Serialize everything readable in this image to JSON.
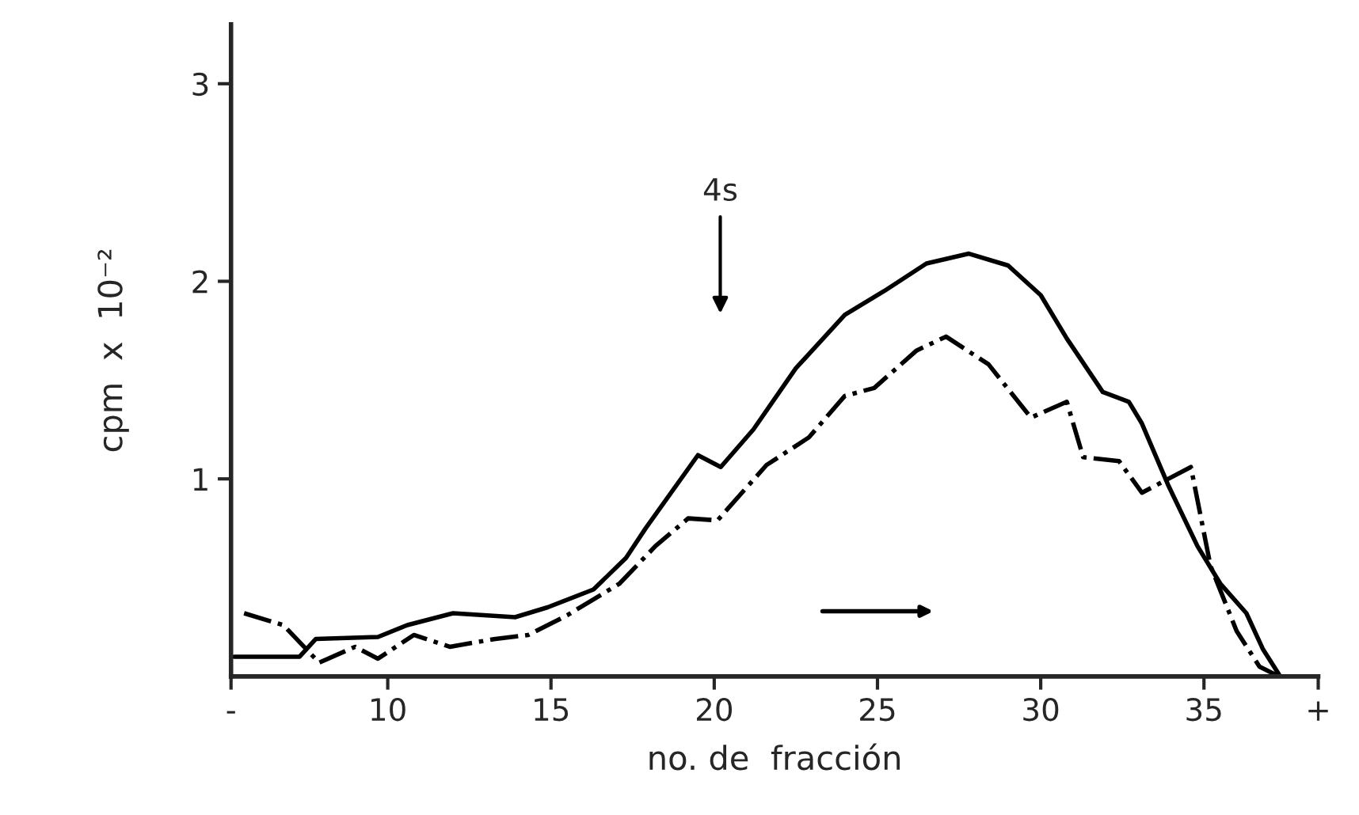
{
  "chart_data": {
    "type": "line",
    "xlabel": "no. de  fracción",
    "ylabel": "cpm  x  10⁻²",
    "xlim": [
      5.2,
      38.5
    ],
    "ylim": [
      0,
      3.3
    ],
    "xticks": [
      {
        "value": 5.2,
        "label": "-"
      },
      10,
      15,
      20,
      25,
      30,
      35,
      {
        "value": 38.5,
        "label": "+"
      }
    ],
    "yticks": [
      1,
      2,
      3
    ],
    "grid": false,
    "legend": false,
    "marker": "none",
    "annotations": [
      "4s"
    ],
    "series": [
      {
        "color": "#000000",
        "line_style": "solid",
        "x": [
          5.3,
          7.3,
          7.8,
          9.7,
          10.6,
          12.0,
          13.9,
          14.9,
          16.3,
          17.3,
          17.9,
          19.5,
          20.2,
          21.2,
          22.5,
          24.0,
          25.2,
          26.5,
          27.8,
          29.0,
          30.0,
          30.8,
          31.9,
          32.7,
          33.1,
          33.9,
          34.8,
          35.5,
          36.3,
          36.8,
          37.3
        ],
        "values": [
          0.1,
          0.1,
          0.19,
          0.2,
          0.26,
          0.32,
          0.3,
          0.35,
          0.44,
          0.6,
          0.75,
          1.12,
          1.06,
          1.25,
          1.56,
          1.83,
          1.95,
          2.09,
          2.14,
          2.08,
          1.93,
          1.71,
          1.44,
          1.39,
          1.28,
          0.97,
          0.66,
          0.47,
          0.32,
          0.14,
          0.01
        ]
      },
      {
        "color": "#000000",
        "line_style": "dashed",
        "x": [
          5.6,
          6.8,
          7.9,
          9.0,
          9.7,
          10.8,
          11.9,
          13.3,
          14.3,
          15.5,
          17.1,
          18.2,
          19.2,
          20.1,
          21.6,
          22.9,
          24.0,
          24.9,
          26.2,
          27.1,
          28.4,
          29.7,
          30.8,
          31.3,
          32.4,
          33.1,
          34.6,
          35.2,
          36.0,
          36.7,
          37.3
        ],
        "values": [
          0.32,
          0.26,
          0.07,
          0.15,
          0.09,
          0.21,
          0.15,
          0.19,
          0.21,
          0.31,
          0.47,
          0.66,
          0.8,
          0.79,
          1.07,
          1.21,
          1.42,
          1.46,
          1.65,
          1.72,
          1.58,
          1.31,
          1.39,
          1.11,
          1.09,
          0.93,
          1.06,
          0.56,
          0.23,
          0.05,
          0.0
        ]
      }
    ]
  }
}
